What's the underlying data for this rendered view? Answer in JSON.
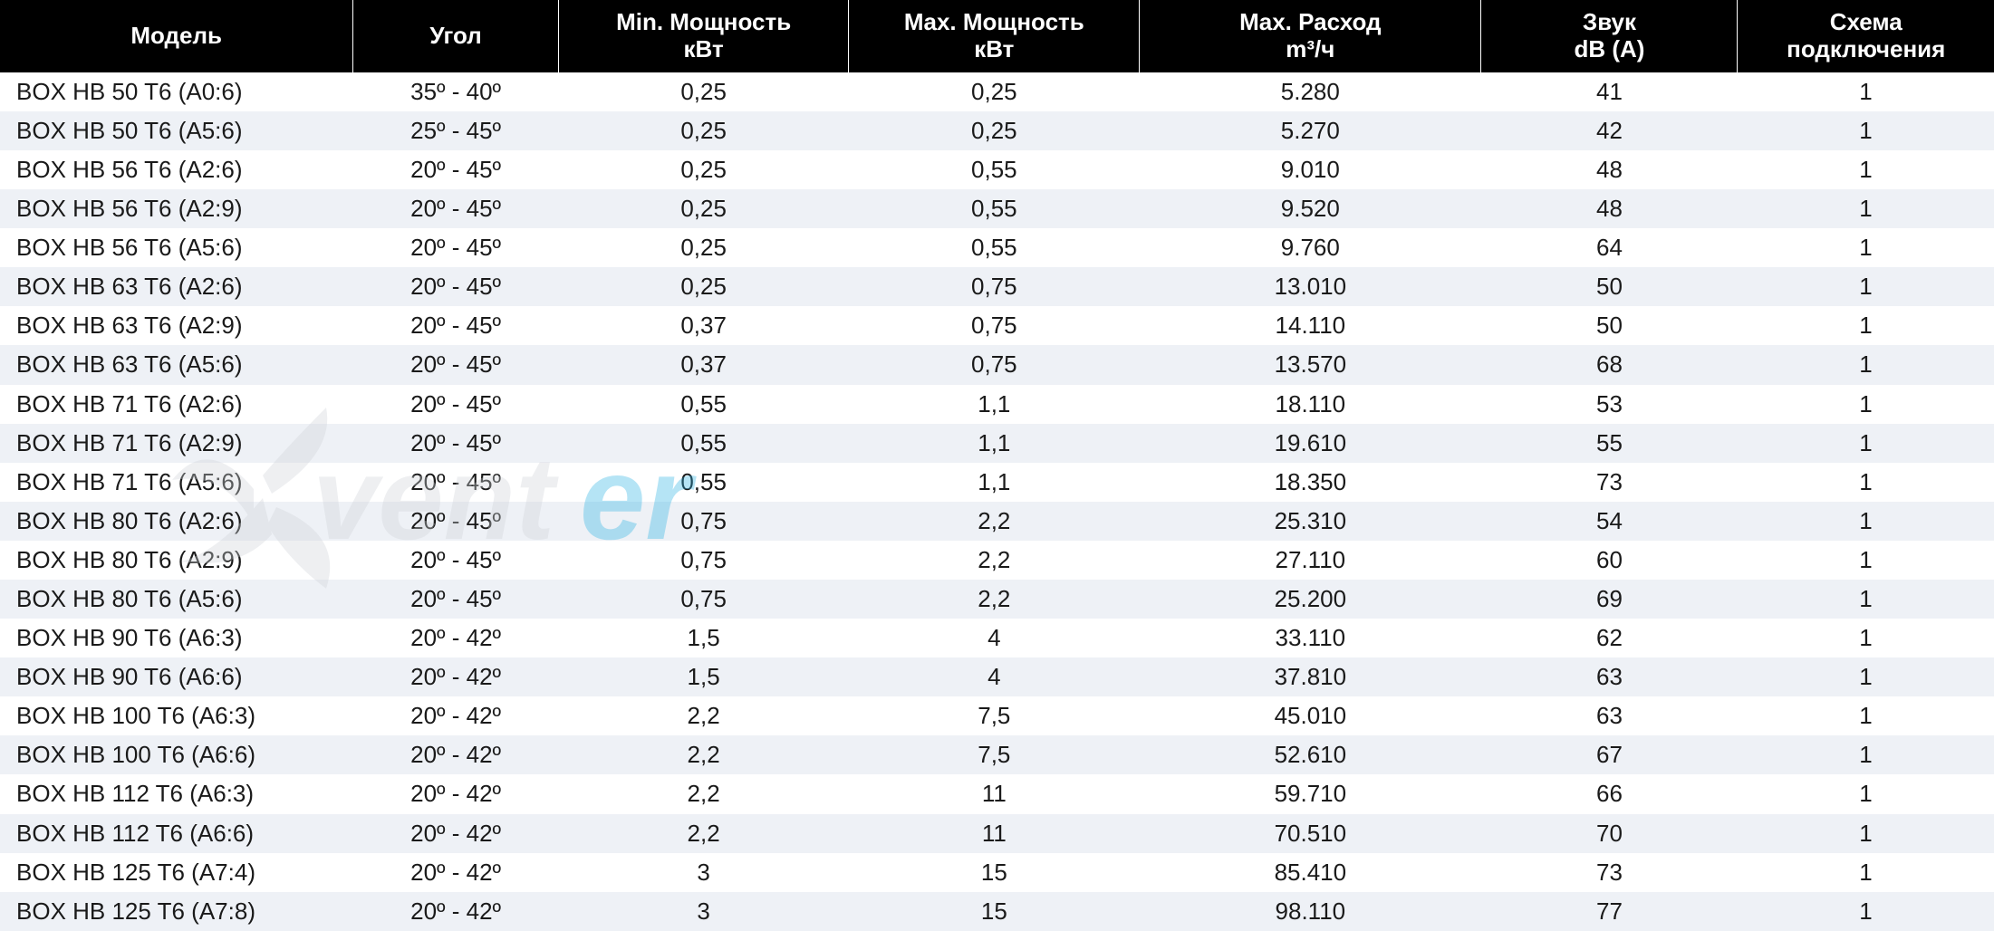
{
  "table": {
    "columns": [
      {
        "key": "model",
        "label": "Модель",
        "sub": ""
      },
      {
        "key": "angle",
        "label": "Угол",
        "sub": ""
      },
      {
        "key": "min",
        "label": "Min. Мощность",
        "sub": "кВт"
      },
      {
        "key": "max",
        "label": "Max. Мощность",
        "sub": "кВт"
      },
      {
        "key": "flow",
        "label": "Max. Расход",
        "sub": "m³/ч"
      },
      {
        "key": "sound",
        "label": "Звук",
        "sub": "dB (A)"
      },
      {
        "key": "scheme",
        "label": "Схема",
        "sub": "подключения"
      }
    ],
    "rows": [
      [
        "BOX HB 50 T6 (A0:6)",
        "35º - 40º",
        "0,25",
        "0,25",
        "5.280",
        "41",
        "1"
      ],
      [
        "BOX HB 50 T6 (A5:6)",
        "25º - 45º",
        "0,25",
        "0,25",
        "5.270",
        "42",
        "1"
      ],
      [
        "BOX HB 56 T6 (A2:6)",
        "20º - 45º",
        "0,25",
        "0,55",
        "9.010",
        "48",
        "1"
      ],
      [
        "BOX HB 56 T6 (A2:9)",
        "20º - 45º",
        "0,25",
        "0,55",
        "9.520",
        "48",
        "1"
      ],
      [
        "BOX HB 56 T6 (A5:6)",
        "20º - 45º",
        "0,25",
        "0,55",
        "9.760",
        "64",
        "1"
      ],
      [
        "BOX HB 63 T6 (A2:6)",
        "20º - 45º",
        "0,25",
        "0,75",
        "13.010",
        "50",
        "1"
      ],
      [
        "BOX HB 63 T6 (A2:9)",
        "20º - 45º",
        "0,37",
        "0,75",
        "14.110",
        "50",
        "1"
      ],
      [
        "BOX HB 63 T6 (A5:6)",
        "20º - 45º",
        "0,37",
        "0,75",
        "13.570",
        "68",
        "1"
      ],
      [
        "BOX HB 71 T6 (A2:6)",
        "20º - 45º",
        "0,55",
        "1,1",
        "18.110",
        "53",
        "1"
      ],
      [
        "BOX HB 71 T6 (A2:9)",
        "20º - 45º",
        "0,55",
        "1,1",
        "19.610",
        "55",
        "1"
      ],
      [
        "BOX HB 71 T6 (A5:6)",
        "20º - 45º",
        "0,55",
        "1,1",
        "18.350",
        "73",
        "1"
      ],
      [
        "BOX HB 80 T6 (A2:6)",
        "20º - 45º",
        "0,75",
        "2,2",
        "25.310",
        "54",
        "1"
      ],
      [
        "BOX HB 80 T6 (A2:9)",
        "20º - 45º",
        "0,75",
        "2,2",
        "27.110",
        "60",
        "1"
      ],
      [
        "BOX HB 80 T6 (A5:6)",
        "20º - 45º",
        "0,75",
        "2,2",
        "25.200",
        "69",
        "1"
      ],
      [
        "BOX HB 90 T6 (A6:3)",
        "20º - 42º",
        "1,5",
        "4",
        "33.110",
        "62",
        "1"
      ],
      [
        "BOX HB 90 T6 (A6:6)",
        "20º - 42º",
        "1,5",
        "4",
        "37.810",
        "63",
        "1"
      ],
      [
        "BOX HB 100 T6 (A6:3)",
        "20º - 42º",
        "2,2",
        "7,5",
        "45.010",
        "63",
        "1"
      ],
      [
        "BOX HB 100 T6 (A6:6)",
        "20º - 42º",
        "2,2",
        "7,5",
        "52.610",
        "67",
        "1"
      ],
      [
        "BOX HB 112 T6 (A6:3)",
        "20º - 42º",
        "2,2",
        "11",
        "59.710",
        "66",
        "1"
      ],
      [
        "BOX HB 112 T6 (A6:6)",
        "20º - 42º",
        "2,2",
        "11",
        "70.510",
        "70",
        "1"
      ],
      [
        "BOX HB 125 T6 (A7:4)",
        "20º - 42º",
        "3",
        "15",
        "85.410",
        "73",
        "1"
      ],
      [
        "BOX HB 125 T6 (A7:8)",
        "20º - 42º",
        "3",
        "15",
        "98.110",
        "77",
        "1"
      ]
    ],
    "header_bg": "#000000",
    "header_fg": "#ffffff",
    "row_even_bg": "#eef1f6",
    "row_odd_bg": "#ffffff",
    "font_size_header": 26,
    "font_size_body": 26
  },
  "watermark": {
    "text": "venter",
    "fan_fill": "#cfd3d8",
    "accent_fill": "#2fb3e3",
    "text_fill": "#cfd3d8"
  }
}
